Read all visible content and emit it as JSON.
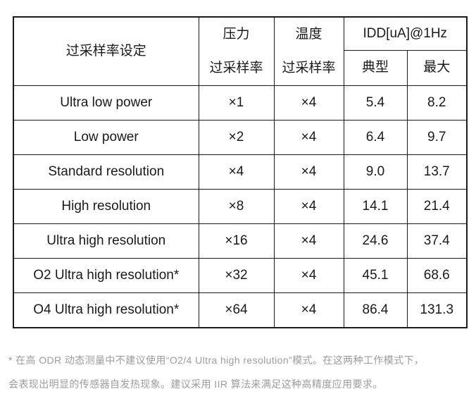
{
  "table": {
    "header": {
      "setting": "过采样率设定",
      "pressure_line1": "压力",
      "pressure_line2": "过采样率",
      "temperature_line1": "温度",
      "temperature_line2": "过采样率",
      "idd": "IDD[uA]@1Hz",
      "typical": "典型",
      "maximum": "最大"
    },
    "rows": [
      {
        "mode": "Ultra low power",
        "pressure_osr": "×1",
        "temperature_osr": "×4",
        "typical": "5.4",
        "maximum": "8.2"
      },
      {
        "mode": "Low power",
        "pressure_osr": "×2",
        "temperature_osr": "×4",
        "typical": "6.4",
        "maximum": "9.7"
      },
      {
        "mode": "Standard resolution",
        "pressure_osr": "×4",
        "temperature_osr": "×4",
        "typical": "9.0",
        "maximum": "13.7"
      },
      {
        "mode": "High resolution",
        "pressure_osr": "×8",
        "temperature_osr": "×4",
        "typical": "14.1",
        "maximum": "21.4"
      },
      {
        "mode": "Ultra high resolution",
        "pressure_osr": "×16",
        "temperature_osr": "×4",
        "typical": "24.6",
        "maximum": "37.4"
      },
      {
        "mode": "O2 Ultra high resolution*",
        "pressure_osr": "×32",
        "temperature_osr": "×4",
        "typical": "45.1",
        "maximum": "68.6"
      },
      {
        "mode": "O4 Ultra high resolution*",
        "pressure_osr": "×64",
        "temperature_osr": "×4",
        "typical": "86.4",
        "maximum": "131.3"
      }
    ]
  },
  "footnote": {
    "line1": "* 在高 ODR 动态测量中不建议使用“O2/4 Ultra high resolution”模式。在这两种工作模式下，",
    "line2": "会表现出明显的传感器自发热现象。建议采用 IIR 算法来满足这种高精度应用要求。"
  },
  "colors": {
    "text": "#1a1a1a",
    "border": "#1a1a1a",
    "footnote_text": "#9c9c9c",
    "background": "#ffffff"
  }
}
